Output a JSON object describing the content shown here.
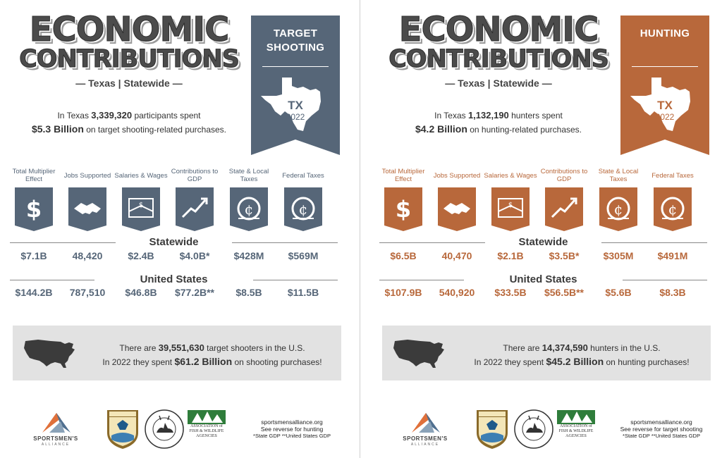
{
  "panels": [
    {
      "title_line1": "ECONOMIC",
      "title_line2": "CONTRIBUTIONS",
      "location": "— Texas | Statewide —",
      "accent": "#566678",
      "banner": {
        "line1": "TARGET",
        "line2": "SHOOTING",
        "state": "TX",
        "year": "2022"
      },
      "intro": {
        "prefix": "In Texas ",
        "participants": "3,339,320",
        "middle": " participants spent",
        "amount": "$5.3 Billion",
        "suffix": " on target shooting-related purchases."
      },
      "metrics": [
        {
          "label": "Total Multiplier Effect",
          "icon": "dollar-icon"
        },
        {
          "label": "Jobs Supported",
          "icon": "handshake-icon"
        },
        {
          "label": "Salaries & Wages",
          "icon": "paycheck-icon"
        },
        {
          "label": "Contributions to GDP",
          "icon": "growth-chart-icon"
        },
        {
          "label": "State & Local Taxes",
          "icon": "coin-icon"
        },
        {
          "label": "Federal Taxes",
          "icon": "coin-icon"
        }
      ],
      "statewide_heading": "Statewide",
      "statewide_values": [
        "$7.1B",
        "48,420",
        "$2.4B",
        "$4.0B*",
        "$428M",
        "$569M"
      ],
      "us_heading": "United States",
      "us_values": [
        "$144.2B",
        "787,510",
        "$46.8B",
        "$77.2B**",
        "$8.5B",
        "$11.5B"
      ],
      "summary": {
        "prefix": "There are ",
        "count": "39,551,630",
        "middle": " target shooters in the U.S.",
        "line2_prefix": "In 2022 they spent ",
        "amount": "$61.2 Billion",
        "suffix": " on shooting purchases!"
      },
      "logos": {
        "sa_name": "SPORTSMEN'S",
        "sa_sub": "ALLIANCE",
        "afwa": "ASSOCIATION of FISH & WILDLIFE AGENCIES"
      },
      "footer": {
        "url": "sportsmensalliance.org",
        "reverse": "See reverse for hunting",
        "notes": "*State GDP **United States GDP"
      }
    },
    {
      "title_line1": "ECONOMIC",
      "title_line2": "CONTRIBUTIONS",
      "location": "— Texas | Statewide —",
      "accent": "#b8683b",
      "banner": {
        "line1": "HUNTING",
        "line2": "",
        "state": "TX",
        "year": "2022"
      },
      "intro": {
        "prefix": "In Texas ",
        "participants": "1,132,190",
        "middle": " hunters spent",
        "amount": "$4.2 Billion",
        "suffix": " on hunting-related purchases."
      },
      "metrics": [
        {
          "label": "Total Multiplier Effect",
          "icon": "dollar-icon"
        },
        {
          "label": "Jobs Supported",
          "icon": "handshake-icon"
        },
        {
          "label": "Salaries & Wages",
          "icon": "paycheck-icon"
        },
        {
          "label": "Contributions to GDP",
          "icon": "growth-chart-icon"
        },
        {
          "label": "State & Local Taxes",
          "icon": "coin-icon"
        },
        {
          "label": "Federal Taxes",
          "icon": "coin-icon"
        }
      ],
      "statewide_heading": "Statewide",
      "statewide_values": [
        "$6.5B",
        "40,470",
        "$2.1B",
        "$3.5B*",
        "$305M",
        "$491M"
      ],
      "us_heading": "United States",
      "us_values": [
        "$107.9B",
        "540,920",
        "$33.5B",
        "$56.5B**",
        "$5.6B",
        "$8.3B"
      ],
      "summary": {
        "prefix": "There are ",
        "count": "14,374,590",
        "middle": " hunters in the U.S.",
        "line2_prefix": "In 2022 they spent ",
        "amount": "$45.2 Billion",
        "suffix": " on hunting purchases!"
      },
      "logos": {
        "sa_name": "SPORTSMEN'S",
        "sa_sub": "ALLIANCE",
        "afwa": "ASSOCIATION of FISH & WILDLIFE AGENCIES"
      },
      "footer": {
        "url": "sportsmensalliance.org",
        "reverse": "See reverse for target shooting",
        "notes": "*State GDP **United States GDP"
      }
    }
  ]
}
